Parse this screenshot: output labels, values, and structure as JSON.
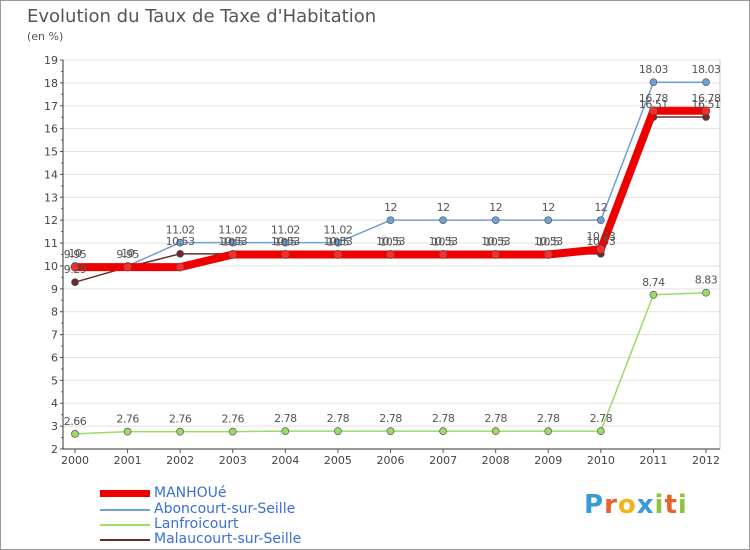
{
  "title": "Evolution du Taux de Taxe d'Habitation",
  "subtitle": "(en %)",
  "logo": {
    "text": "Proxiti",
    "letters": [
      "P",
      "r",
      "o",
      "x",
      "i",
      "t",
      "i"
    ],
    "colors": [
      "#3a9ad9",
      "#e8632b",
      "#f2b418",
      "#3a9ad9",
      "#8cc63f",
      "#e8632b",
      "#8cc63f"
    ]
  },
  "chart_data": {
    "type": "line",
    "title": "Evolution du Taux de Taxe d'Habitation",
    "ylabel": "(en %)",
    "categories": [
      "2000",
      "2001",
      "2002",
      "2003",
      "2004",
      "2005",
      "2006",
      "2007",
      "2008",
      "2009",
      "2010",
      "2011",
      "2012"
    ],
    "ylim": [
      2,
      19
    ],
    "yticks": [
      "2",
      "3",
      "4",
      "5",
      "6",
      "7",
      "8",
      "9",
      "10",
      "11",
      "12",
      "13",
      "14",
      "15",
      "16",
      "17",
      "18",
      "19"
    ],
    "series": [
      {
        "name": "Aboncourt-sur-Seille",
        "color": "#6fa1d8",
        "values": [
          10,
          10,
          11.02,
          11.02,
          11.02,
          11.02,
          12,
          12,
          12,
          12,
          12,
          18.03,
          18.03
        ],
        "labels": [
          "10",
          "10",
          "11.02",
          "11.02",
          "11.02",
          "11.02",
          "12",
          "12",
          "12",
          "12",
          "12",
          "18.03",
          "18.03"
        ]
      },
      {
        "name": "Malaucourt-sur-Seille",
        "color": "#6b2b2b",
        "values": [
          9.29,
          9.95,
          10.53,
          10.53,
          10.53,
          10.53,
          10.53,
          10.53,
          10.53,
          10.53,
          10.53,
          16.51,
          16.51
        ],
        "labels": [
          "9.29",
          "",
          "10.53",
          "10.53",
          "10.53",
          "10.53",
          "10.53",
          "10.53",
          "10.53",
          "10.53",
          "10.53",
          "16.51",
          "16.51"
        ]
      },
      {
        "name": "MANHOUé",
        "color": "#ee0000",
        "values": [
          9.95,
          9.95,
          9.95,
          10.5,
          10.5,
          10.5,
          10.5,
          10.5,
          10.5,
          10.5,
          10.73,
          16.78,
          16.78
        ],
        "labels": [
          "9.95",
          "9.95",
          "",
          "10.5",
          "10.5",
          "10.5",
          "10.5",
          "10.5",
          "10.5",
          "10.5",
          "10.73",
          "16.78",
          "16.78"
        ]
      },
      {
        "name": "Lanfroicourt",
        "color": "#99dd66",
        "values": [
          2.66,
          2.76,
          2.76,
          2.76,
          2.78,
          2.78,
          2.78,
          2.78,
          2.78,
          2.78,
          2.78,
          8.74,
          8.83
        ],
        "labels": [
          "2.66",
          "2.76",
          "2.76",
          "2.76",
          "2.78",
          "2.78",
          "2.78",
          "2.78",
          "2.78",
          "2.78",
          "2.78",
          "8.74",
          "8.83"
        ]
      }
    ],
    "legend": [
      "MANHOUé",
      "Aboncourt-sur-Seille",
      "Lanfroicourt",
      "Malaucourt-sur-Seille"
    ],
    "legend_colors": [
      "#ee0000",
      "#6fa1d8",
      "#99dd66",
      "#6b2b2b"
    ],
    "legend_position": "bottom-left"
  }
}
